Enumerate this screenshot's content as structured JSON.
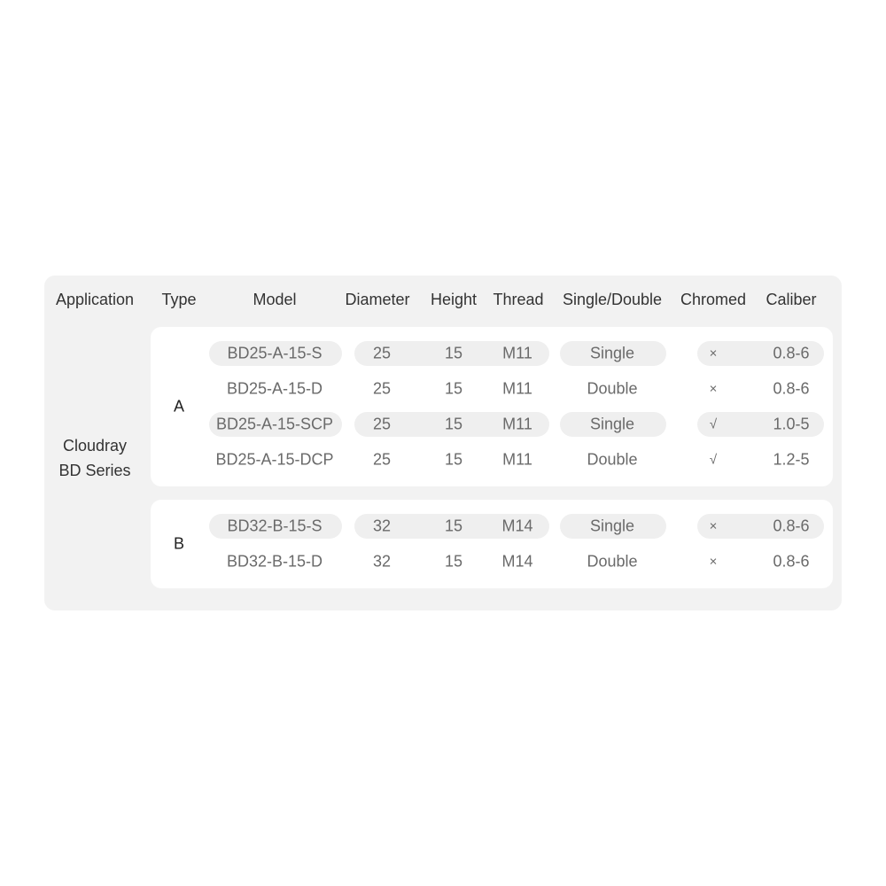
{
  "headers": [
    "Application",
    "Type",
    "Model",
    "Diameter",
    "Height",
    "Thread",
    "Single/Double",
    "Chromed",
    "Caliber"
  ],
  "application": {
    "line1": "Cloudray",
    "line2": "BD Series"
  },
  "groups": [
    {
      "type": "A",
      "rows": [
        {
          "model": "BD25-A-15-S",
          "diameter": "25",
          "height": "15",
          "thread": "M11",
          "single_double": "Single",
          "chromed": "×",
          "caliber": "0.8-6",
          "shaded": true
        },
        {
          "model": "BD25-A-15-D",
          "diameter": "25",
          "height": "15",
          "thread": "M11",
          "single_double": "Double",
          "chromed": "×",
          "caliber": "0.8-6",
          "shaded": false
        },
        {
          "model": "BD25-A-15-SCP",
          "diameter": "25",
          "height": "15",
          "thread": "M11",
          "single_double": "Single",
          "chromed": "√",
          "caliber": "1.0-5",
          "shaded": true
        },
        {
          "model": "BD25-A-15-DCP",
          "diameter": "25",
          "height": "15",
          "thread": "M11",
          "single_double": "Double",
          "chromed": "√",
          "caliber": "1.2-5",
          "shaded": false
        }
      ]
    },
    {
      "type": "B",
      "rows": [
        {
          "model": "BD32-B-15-S",
          "diameter": "32",
          "height": "15",
          "thread": "M14",
          "single_double": "Single",
          "chromed": "×",
          "caliber": "0.8-6",
          "shaded": true
        },
        {
          "model": "BD32-B-15-D",
          "diameter": "32",
          "height": "15",
          "thread": "M14",
          "single_double": "Double",
          "chromed": "×",
          "caliber": "0.8-6",
          "shaded": false
        }
      ]
    }
  ]
}
